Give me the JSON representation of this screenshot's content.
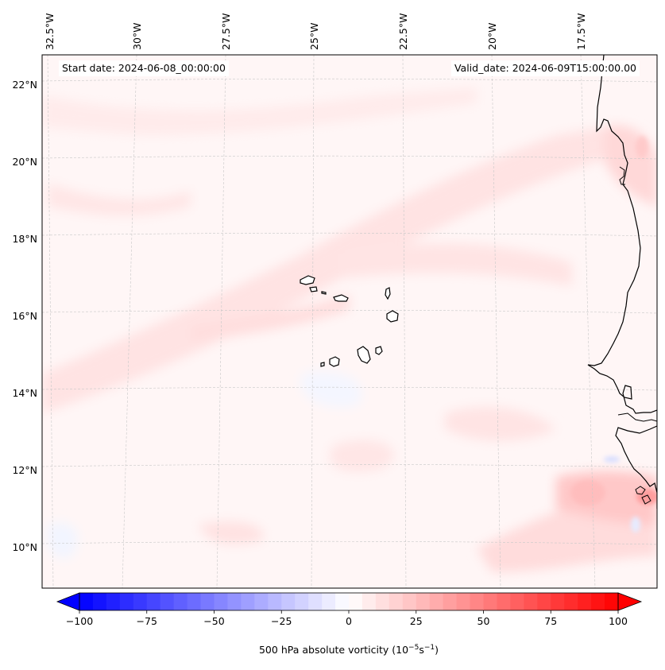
{
  "header": {
    "start_date": "Start date: 2024-06-08_00:00:00",
    "valid_date": "Valid_date: 2024-06-09T15:00:00.00"
  },
  "map": {
    "projection": "lambert-conic",
    "field": "500 hPa absolute vorticity",
    "lon_labels": [
      "32.5°W",
      "30°W",
      "27.5°W",
      "25°W",
      "22.5°W",
      "20°W",
      "17.5°W"
    ],
    "lat_labels": [
      "22°N",
      "20°N",
      "18°N",
      "16°N",
      "14°N",
      "12°N",
      "10°N"
    ],
    "islands": "Cabo Verde",
    "coastline": "West Africa (Mauritania, Senegal, Guinea-Bissau, Guinea)"
  },
  "colorbar": {
    "cmap": "bwr",
    "ticks": [
      "−100",
      "−75",
      "−50",
      "−25",
      "0",
      "25",
      "50",
      "75",
      "100"
    ],
    "vmin": -100,
    "vmax": 100,
    "levels": 40,
    "extend": "both",
    "label_main": "500 hPa absolute vorticity (10",
    "label_exp1": "−5",
    "label_mid": "s",
    "label_exp2": "−1",
    "label_end": ")"
  }
}
